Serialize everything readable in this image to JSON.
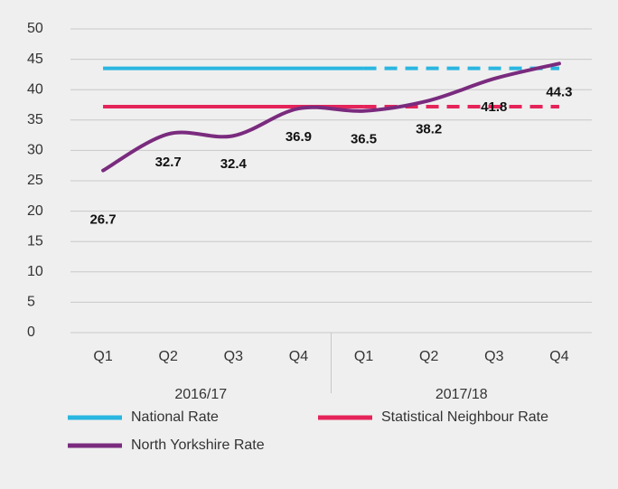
{
  "chart_data": {
    "type": "line",
    "categories": [
      "Q1",
      "Q2",
      "Q3",
      "Q4",
      "Q1",
      "Q2",
      "Q3",
      "Q4"
    ],
    "groups": [
      "2016/17",
      "2017/18"
    ],
    "series": [
      {
        "name": "National Rate",
        "color": "#29b6e0",
        "values": [
          43.5,
          43.5,
          43.5,
          43.5,
          43.5,
          43.5,
          43.5,
          43.5
        ],
        "dashed_from": 4
      },
      {
        "name": "Statistical Neighbour Rate",
        "color": "#e5245a",
        "values": [
          37.2,
          37.2,
          37.2,
          37.2,
          37.2,
          37.2,
          37.2,
          37.2
        ],
        "dashed_from": 4
      },
      {
        "name": "North Yorkshire Rate",
        "color": "#7a2b7e",
        "values": [
          26.7,
          32.7,
          32.4,
          36.9,
          36.5,
          38.2,
          41.8,
          44.3
        ],
        "smooth": true,
        "data_labels": true
      }
    ],
    "ylim": [
      0,
      50
    ],
    "yticks": [
      0,
      5,
      10,
      15,
      20,
      25,
      30,
      35,
      40,
      45,
      50
    ],
    "grid": true,
    "legend": "bottom"
  }
}
